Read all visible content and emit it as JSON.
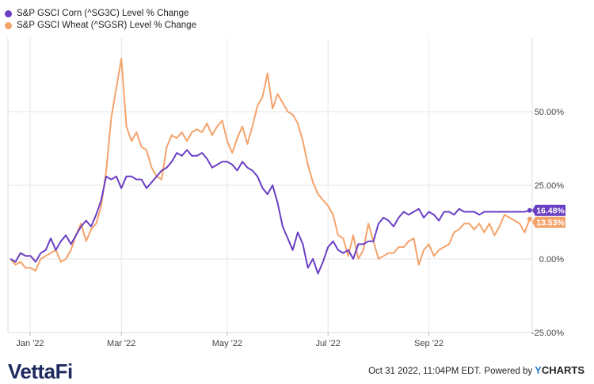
{
  "legend": [
    {
      "label": "S&P GSCI Corn (^SG3C) Level % Change",
      "color": "#6a3fc4"
    },
    {
      "label": "S&P GSCI Wheat (^SGSR) Level % Change",
      "color": "#f4a36b"
    }
  ],
  "footer": {
    "logo": "VettaFi",
    "timestamp": "Oct 31 2022, 11:04PM EDT.",
    "powered_by": "Powered by",
    "brand_y": "Y",
    "brand_rest": "CHARTS"
  },
  "chart_data": {
    "type": "line",
    "xlabel": "",
    "ylabel": "",
    "x_ticks": [
      "Jan '22",
      "Mar '22",
      "May '22",
      "Jul '22",
      "Sep '22"
    ],
    "x_tick_positions": [
      0.09,
      1.9,
      4.0,
      6.0,
      8.0
    ],
    "y_ticks": [
      -25,
      0,
      25,
      50
    ],
    "y_tick_labels": [
      "-25.00%",
      "0.00%",
      "25.00%",
      "50.00%"
    ],
    "ylim": [
      -25,
      75
    ],
    "xlim": [
      -0.35,
      10.05
    ],
    "grid": true,
    "legend_position": "top-left",
    "series": [
      {
        "name": "S&P GSCI Corn (^SG3C) Level % Change",
        "color": "#6a3fc4",
        "end_label": "16.48%",
        "x": [
          -0.3,
          -0.2,
          -0.1,
          0,
          0.1,
          0.2,
          0.3,
          0.4,
          0.5,
          0.6,
          0.7,
          0.8,
          0.9,
          1.0,
          1.1,
          1.2,
          1.3,
          1.4,
          1.5,
          1.6,
          1.7,
          1.8,
          1.9,
          2.0,
          2.1,
          2.2,
          2.3,
          2.4,
          2.5,
          2.6,
          2.7,
          2.8,
          2.9,
          3.0,
          3.1,
          3.2,
          3.3,
          3.4,
          3.5,
          3.6,
          3.7,
          3.8,
          3.9,
          4.0,
          4.1,
          4.2,
          4.3,
          4.4,
          4.5,
          4.6,
          4.7,
          4.8,
          4.9,
          5.0,
          5.1,
          5.2,
          5.3,
          5.4,
          5.5,
          5.6,
          5.7,
          5.8,
          5.9,
          6.0,
          6.1,
          6.2,
          6.3,
          6.4,
          6.5,
          6.6,
          6.7,
          6.8,
          6.9,
          7.0,
          7.1,
          7.2,
          7.3,
          7.4,
          7.5,
          7.6,
          7.7,
          7.8,
          7.9,
          8.0,
          8.1,
          8.2,
          8.3,
          8.4,
          8.5,
          8.6,
          8.7,
          8.8,
          8.9,
          9.0,
          9.1,
          9.2,
          9.3,
          9.4,
          9.5,
          9.6,
          9.7,
          9.8,
          9.9,
          10.0
        ],
        "values": [
          0,
          -1,
          2,
          1,
          1,
          -1,
          2,
          3,
          7,
          3,
          6,
          8,
          5,
          8,
          11,
          13,
          11,
          15,
          20,
          28,
          27,
          28,
          24,
          28,
          28,
          27,
          27,
          24,
          26,
          28,
          30,
          31,
          33,
          36,
          35,
          37,
          35,
          35,
          36,
          34,
          31,
          32,
          33,
          33,
          32,
          30,
          33,
          31,
          30,
          28,
          24,
          22,
          25,
          19,
          11,
          7,
          3,
          9,
          5,
          -3,
          0,
          -5,
          -1,
          4,
          6,
          3,
          2,
          3,
          0,
          5,
          5,
          6,
          6,
          12,
          14,
          13,
          11,
          14,
          16,
          15,
          16,
          17,
          14,
          16,
          15,
          13,
          16,
          16,
          15,
          17,
          16,
          16,
          16,
          15,
          16,
          16,
          16,
          16,
          16,
          16,
          16,
          16,
          16,
          16.48
        ]
      },
      {
        "name": "S&P GSCI Wheat (^SGSR) Level % Change",
        "color": "#f4a36b",
        "end_label": "13.53%",
        "x": [
          -0.3,
          -0.2,
          -0.1,
          0,
          0.1,
          0.2,
          0.3,
          0.4,
          0.5,
          0.6,
          0.7,
          0.8,
          0.9,
          1.0,
          1.1,
          1.2,
          1.3,
          1.4,
          1.5,
          1.6,
          1.7,
          1.8,
          1.9,
          2.0,
          2.1,
          2.2,
          2.3,
          2.4,
          2.5,
          2.6,
          2.7,
          2.8,
          2.9,
          3.0,
          3.1,
          3.2,
          3.3,
          3.4,
          3.5,
          3.6,
          3.7,
          3.8,
          3.9,
          4.0,
          4.1,
          4.2,
          4.3,
          4.4,
          4.5,
          4.6,
          4.7,
          4.8,
          4.9,
          5.0,
          5.1,
          5.2,
          5.3,
          5.4,
          5.5,
          5.6,
          5.7,
          5.8,
          5.9,
          6.0,
          6.1,
          6.2,
          6.3,
          6.4,
          6.5,
          6.6,
          6.7,
          6.8,
          6.9,
          7.0,
          7.1,
          7.2,
          7.3,
          7.4,
          7.5,
          7.6,
          7.7,
          7.8,
          7.9,
          8.0,
          8.1,
          8.2,
          8.3,
          8.4,
          8.5,
          8.6,
          8.7,
          8.8,
          8.9,
          9.0,
          9.1,
          9.2,
          9.3,
          9.4,
          9.5,
          9.6,
          9.7,
          9.8,
          9.9,
          10.0
        ],
        "values": [
          0,
          -2,
          -1,
          -3,
          -3,
          -4,
          0,
          1,
          2,
          3,
          -1,
          0,
          3,
          8,
          12,
          6,
          10,
          12,
          18,
          30,
          48,
          58,
          68,
          45,
          40,
          43,
          38,
          37,
          31,
          28,
          27,
          38,
          42,
          41,
          43,
          40,
          43,
          44,
          43,
          46,
          42,
          45,
          47,
          40,
          36,
          41,
          45,
          39,
          45,
          52,
          55,
          63,
          51,
          56,
          53,
          50,
          49,
          46,
          40,
          32,
          26,
          22,
          20,
          18,
          15,
          8,
          7,
          1,
          8,
          0,
          3,
          12,
          6,
          0,
          1,
          2,
          2,
          4,
          4,
          6,
          7,
          -2,
          3,
          5,
          1,
          3,
          4,
          5,
          9,
          10,
          12,
          12,
          10,
          12,
          9,
          12,
          8,
          11,
          15,
          14,
          13,
          12,
          9,
          13.53
        ]
      }
    ]
  }
}
